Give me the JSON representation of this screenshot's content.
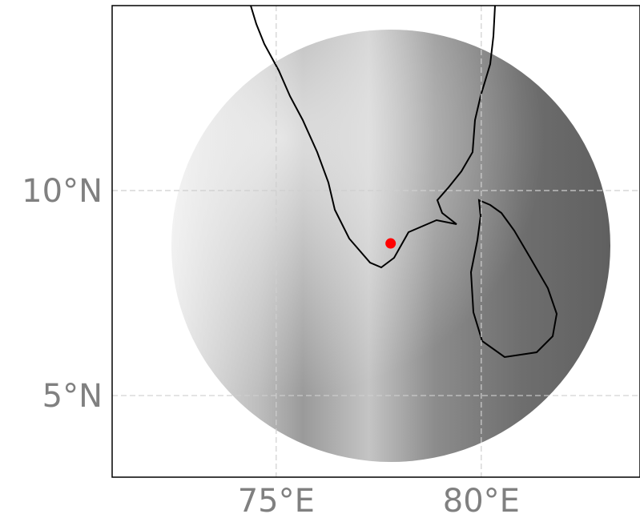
{
  "map": {
    "xlim": [
      71,
      83.87
    ],
    "ylim": [
      3.01,
      14.51
    ],
    "xticks": [
      {
        "value": 75,
        "label": "75°E"
      },
      {
        "value": 80,
        "label": "80°E"
      }
    ],
    "yticks": [
      {
        "value": 5,
        "label": "5°N"
      },
      {
        "value": 10,
        "label": "10°N"
      }
    ],
    "grid": true,
    "points": [
      {
        "lon": 77.79,
        "lat": 8.71,
        "color": "#ff0000"
      }
    ]
  }
}
